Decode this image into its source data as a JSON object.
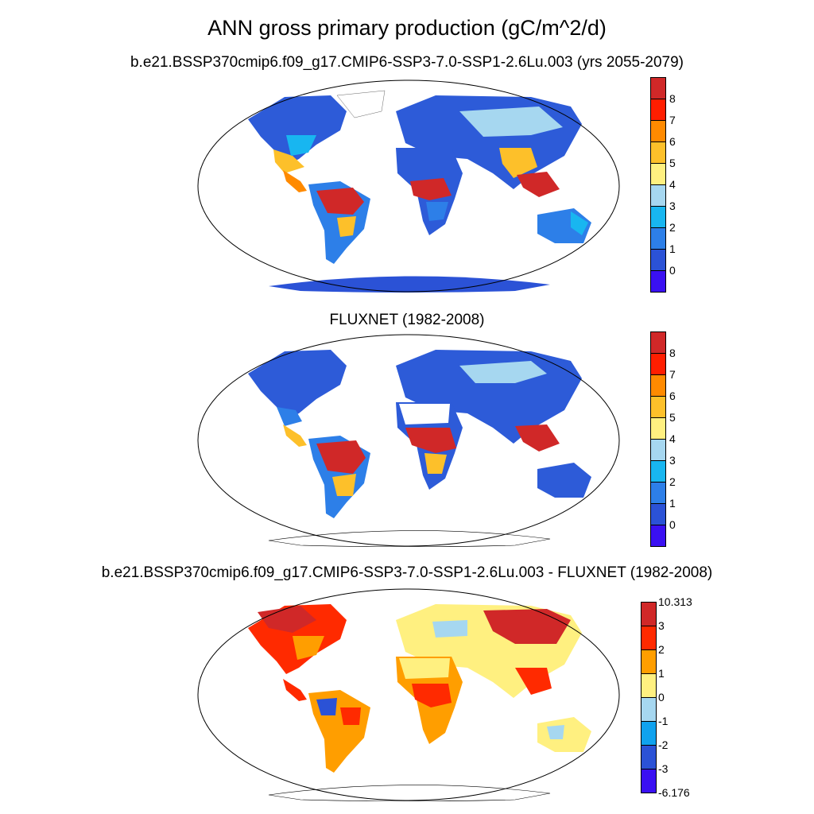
{
  "main_title": "ANN gross primary production (gC/m^2/d)",
  "panels": [
    {
      "title": "b.e21.BSSP370cmip6.f09_g17.CMIP6-SSP3-7.0-SSP1-2.6Lu.003 (yrs 2055-2079)",
      "colorbar": {
        "colors": [
          "#3A10F2",
          "#2B52D6",
          "#2D7FE8",
          "#18B6F0",
          "#A6D7F0",
          "#FFF080",
          "#FDC02A",
          "#FF8A00",
          "#FF1E00",
          "#D02828"
        ],
        "labels": [
          "0",
          "1",
          "2",
          "3",
          "4",
          "5",
          "6",
          "7",
          "8"
        ]
      }
    },
    {
      "title": "FLUXNET (1982-2008)",
      "colorbar": {
        "colors": [
          "#3A10F2",
          "#2B52D6",
          "#2D7FE8",
          "#18B6F0",
          "#A6D7F0",
          "#FFF080",
          "#FDC02A",
          "#FF8A00",
          "#FF1E00",
          "#D02828"
        ],
        "labels": [
          "0",
          "1",
          "2",
          "3",
          "4",
          "5",
          "6",
          "7",
          "8"
        ]
      }
    },
    {
      "title": "b.e21.BSSP370cmip6.f09_g17.CMIP6-SSP3-7.0-SSP1-2.6Lu.003 - FLUXNET (1982-2008)",
      "colorbar": {
        "colors": [
          "#3A10F2",
          "#2B52D6",
          "#10A2EE",
          "#A6D7F0",
          "#FFF080",
          "#FF9E00",
          "#FF2A00",
          "#D02828"
        ],
        "labels": [
          "-6.176",
          "-3",
          "-2",
          "-1",
          "0",
          "1",
          "2",
          "3",
          "10.313"
        ]
      }
    }
  ]
}
